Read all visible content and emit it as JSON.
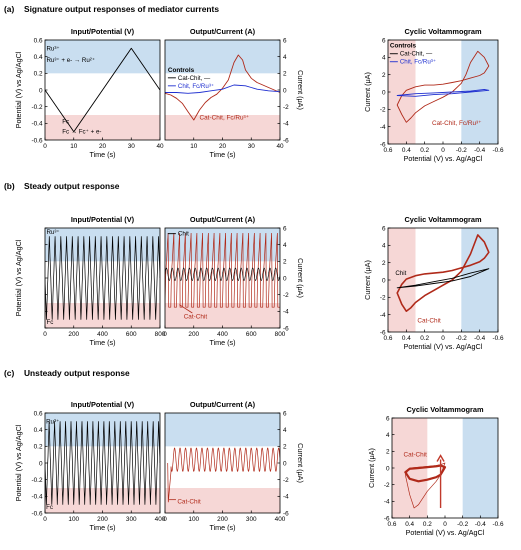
{
  "sections": [
    {
      "id": "a",
      "label": "(a)",
      "title": "Signature output responses of mediator currents"
    },
    {
      "id": "b",
      "label": "(b)",
      "title": "Steady output response"
    },
    {
      "id": "c",
      "label": "(c)",
      "title": "Unsteady output response"
    }
  ],
  "colors": {
    "blue_band": "#c9def0",
    "red_band": "#f6d7d6",
    "black": "#000000",
    "cat_red": "#b02a1a",
    "chit_blue": "#1f2fd0",
    "arrow_red": "#c0392b"
  },
  "chart_data": [
    {
      "id": "a1",
      "type": "line",
      "row": 0,
      "col": 0,
      "title": "Input/Potential (V)",
      "xlabel": "Time (s)",
      "ylabel": "Potential  (V) vs Ag/AgCl",
      "xlim": [
        0,
        40
      ],
      "ylim": [
        0.6,
        -0.6
      ],
      "xticks": [
        "0",
        "10",
        "20",
        "30",
        "40"
      ],
      "yticks": [
        "-0.6",
        "-0.4",
        "-0.2",
        "0",
        "0.2",
        "0.4",
        "0.6"
      ],
      "bands": [
        {
          "color": "blue",
          "y": [
            -0.6,
            -0.2
          ]
        },
        {
          "color": "red",
          "y": [
            0.3,
            0.6
          ]
        }
      ],
      "series": [
        {
          "color": "black",
          "x": [
            0,
            10,
            30,
            40
          ],
          "y": [
            0.0,
            0.5,
            -0.5,
            0.0
          ]
        }
      ],
      "annotations": [
        {
          "text": "Ru³⁺",
          "x": 0.5,
          "y": -0.5,
          "style": "ann"
        },
        {
          "text": "Ru³⁺ + e- → Ru²⁺",
          "x": 0.5,
          "y": -0.36,
          "style": "ann"
        },
        {
          "text": "Fc",
          "x": 6,
          "y": 0.38,
          "style": "ann"
        },
        {
          "text": "Fc → Fc⁺ + e-",
          "x": 6,
          "y": 0.5,
          "style": "ann"
        }
      ]
    },
    {
      "id": "a2",
      "type": "line",
      "row": 0,
      "col": 1,
      "title": "Output/Current (A)",
      "xlabel": "Time (s)",
      "ylabel_right": "Current (μA)",
      "xlim": [
        0,
        40
      ],
      "ylim": [
        -6,
        6
      ],
      "xticks": [
        "10",
        "20",
        "30",
        "40"
      ],
      "yticks": [
        "-6",
        "-4",
        "-2",
        "0",
        "2",
        "4",
        "6"
      ],
      "bands": [
        {
          "color": "blue",
          "y": [
            2,
            6
          ]
        },
        {
          "color": "red",
          "y": [
            -6,
            -3
          ]
        }
      ],
      "series": [
        {
          "color": "red",
          "x": [
            0,
            2,
            4,
            6,
            8,
            10,
            12,
            14,
            16,
            18,
            20,
            22,
            24,
            25.5,
            27,
            28,
            30,
            32,
            34,
            36,
            38,
            40
          ],
          "y": [
            -0.4,
            -0.6,
            -1.0,
            -1.6,
            -2.6,
            -3.6,
            -2.4,
            -1.5,
            -0.9,
            -0.5,
            0.2,
            1.2,
            3.3,
            4.2,
            3.6,
            2.4,
            1.4,
            0.9,
            0.6,
            0.3,
            0.0,
            -0.3
          ]
        },
        {
          "color": "blue",
          "x": [
            0,
            4,
            8,
            12,
            16,
            20,
            24,
            28,
            30,
            32,
            36,
            40
          ],
          "y": [
            -0.3,
            -0.3,
            -0.4,
            -0.3,
            -0.1,
            0.1,
            0.6,
            0.5,
            0.3,
            0.1,
            -0.1,
            -0.2
          ]
        }
      ],
      "legend": {
        "title": "Controls",
        "entries": [
          {
            "text": "Cat-Chit, —",
            "color": "black"
          },
          {
            "text": "Chit, Fc/Ru³⁺",
            "color": "blue"
          }
        ],
        "x": 1,
        "y": 2.9
      },
      "annotations": [
        {
          "text": "Cat-Chit, Fc/Ru³⁺",
          "x": 12,
          "y": -3.3,
          "style": "ann-red"
        }
      ]
    },
    {
      "id": "a3",
      "type": "line",
      "row": 0,
      "col": 2,
      "title": "Cyclic Voltammogram",
      "xlabel": "Potential  (V) vs. Ag/AgCl",
      "ylabel": "Current (μA)",
      "xlim": [
        0.6,
        -0.6
      ],
      "ylim": [
        -6,
        6
      ],
      "xticks": [
        "0.6",
        "0.4",
        "0.2",
        "0",
        "-0.2",
        "-0.4",
        "-0.6"
      ],
      "yticks": [
        "-6",
        "-4",
        "-2",
        "0",
        "2",
        "4",
        "6"
      ],
      "bands": [
        {
          "color": "red",
          "x": [
            0.6,
            0.3
          ]
        },
        {
          "color": "blue",
          "x": [
            -0.2,
            -0.6
          ]
        }
      ],
      "series": [
        {
          "color": "red",
          "closed": true,
          "x": [
            0.5,
            0.45,
            0.4,
            0.35,
            0.3,
            0.2,
            0.1,
            0.0,
            -0.1,
            -0.2,
            -0.25,
            -0.3,
            -0.38,
            -0.45,
            -0.5,
            -0.45,
            -0.4,
            -0.3,
            -0.2,
            -0.1,
            0.0,
            0.1,
            0.2,
            0.3,
            0.4,
            0.45
          ],
          "y": [
            -1.5,
            -2.6,
            -3.5,
            -3.0,
            -2.4,
            -1.6,
            -1.1,
            -0.6,
            0.0,
            1.0,
            2.0,
            3.4,
            4.7,
            4.0,
            3.0,
            2.2,
            1.9,
            1.6,
            1.3,
            1.1,
            0.9,
            0.8,
            0.8,
            0.6,
            0.2,
            -0.4
          ]
        },
        {
          "color": "blue",
          "closed": true,
          "x": [
            0.5,
            0.3,
            0.1,
            -0.1,
            -0.3,
            -0.45,
            -0.5,
            -0.3,
            -0.1,
            0.1,
            0.3,
            0.5
          ],
          "y": [
            -0.4,
            -0.2,
            -0.1,
            0.0,
            0.1,
            0.3,
            0.2,
            0.0,
            -0.2,
            -0.3,
            -0.5,
            -0.4
          ]
        }
      ],
      "legend": {
        "title": "Controls",
        "entries": [
          {
            "text": "Cat-Chit, —",
            "color": "black"
          },
          {
            "text": "Chit, Fc/Ru³⁺",
            "color": "blue"
          }
        ],
        "x": 0.58,
        "y": 5.8
      },
      "annotations": [
        {
          "text": "Cat-Chit, Fc/Ru³⁺",
          "x": 0.12,
          "y": -3.6,
          "style": "ann-red"
        }
      ]
    },
    {
      "id": "b1",
      "type": "line",
      "row": 1,
      "col": 0,
      "title": "Input/Potential (V)",
      "xlabel": "Time (s)",
      "ylabel": "Potential  (V) vs Ag/AgCl",
      "xlim": [
        0,
        800
      ],
      "ylim": [
        0.6,
        -0.6
      ],
      "xticks": [
        "0",
        "200",
        "400",
        "600",
        "800"
      ],
      "yticks": [],
      "bands": [
        {
          "color": "blue",
          "y": [
            -0.6,
            -0.2
          ]
        },
        {
          "color": "red",
          "y": [
            0.3,
            0.6
          ]
        }
      ],
      "wave": {
        "kind": "triangle",
        "start": 0,
        "end": 800,
        "period": 40,
        "phase": 0,
        "min": -0.5,
        "max": 0.5,
        "color": "black"
      },
      "annotations": [
        {
          "text": "Ru³⁺",
          "x": 10,
          "y": -0.55,
          "style": "ann"
        },
        {
          "text": "Fc",
          "x": 10,
          "y": 0.53,
          "style": "ann"
        }
      ]
    },
    {
      "id": "b2",
      "type": "line",
      "row": 1,
      "col": 1,
      "title": "Output/Current (A)",
      "xlabel": "Time (s)",
      "ylabel_right": "Current (μA)",
      "xlim": [
        0,
        800
      ],
      "ylim": [
        -6,
        6
      ],
      "xticks": [
        "0",
        "200",
        "400",
        "600",
        "800"
      ],
      "yticks": [
        "-6",
        "-4",
        "-2",
        "0",
        "2",
        "4",
        "6"
      ],
      "bands": [
        {
          "color": "blue",
          "y": [
            2,
            6
          ]
        },
        {
          "color": "red",
          "y": [
            -6,
            -3
          ]
        }
      ],
      "waves": [
        {
          "kind": "spike",
          "start": 0,
          "end": 800,
          "period": 40,
          "min": -3.5,
          "max": 5.5,
          "base": 0.3,
          "color": "red",
          "sw": 0.7
        },
        {
          "kind": "sine",
          "start": 0,
          "end": 800,
          "period": 40,
          "min": -0.3,
          "max": 1.2,
          "color": "black",
          "sw": 0.6
        }
      ],
      "legend": {
        "title": "",
        "entries": [
          {
            "text": "Chit",
            "color": "black"
          }
        ],
        "x": 20,
        "y": 5.8
      },
      "annotations": [
        {
          "text": "Cat-Chit",
          "x": 130,
          "y": -4.6,
          "style": "ann-red"
        }
      ],
      "legend_line": {
        "x": [
          190,
          100
        ],
        "y": [
          -4.2,
          -3.2
        ],
        "color": "red"
      }
    },
    {
      "id": "b3",
      "type": "line",
      "row": 1,
      "col": 2,
      "title": "Cyclic Voltammogram",
      "xlabel": "Potential  (V) vs. Ag/AgCl",
      "ylabel": "Current (μA)",
      "xlim": [
        0.6,
        -0.6
      ],
      "ylim": [
        -6,
        6
      ],
      "xticks": [
        "0.6",
        "0.4",
        "0.2",
        "0",
        "-0.2",
        "-0.4",
        "-0.6"
      ],
      "yticks": [
        "-6",
        "-4",
        "-2",
        "0",
        "2",
        "4",
        "6"
      ],
      "bands": [
        {
          "color": "red",
          "x": [
            0.6,
            0.3
          ]
        },
        {
          "color": "blue",
          "x": [
            -0.2,
            -0.6
          ]
        }
      ],
      "series": [
        {
          "color": "red",
          "closed": true,
          "x": [
            0.5,
            0.45,
            0.4,
            0.35,
            0.3,
            0.2,
            0.1,
            0.0,
            -0.1,
            -0.2,
            -0.3,
            -0.38,
            -0.45,
            -0.5,
            -0.45,
            -0.4,
            -0.3,
            -0.2,
            -0.1,
            0.0,
            0.1,
            0.2,
            0.3,
            0.4,
            0.45
          ],
          "y": [
            -1.5,
            -2.8,
            -3.6,
            -3.2,
            -2.6,
            -1.8,
            -1.2,
            -0.6,
            0.0,
            1.0,
            3.0,
            5.2,
            4.4,
            3.2,
            2.5,
            2.1,
            1.7,
            1.4,
            1.1,
            0.9,
            0.8,
            0.7,
            0.5,
            0.1,
            -0.5
          ],
          "sw": 1.6
        },
        {
          "color": "black",
          "closed": true,
          "x": [
            0.5,
            0.3,
            0.1,
            -0.1,
            -0.3,
            -0.5,
            -0.3,
            -0.1,
            0.1,
            0.3,
            0.5
          ],
          "y": [
            -0.9,
            -0.6,
            -0.2,
            0.2,
            0.8,
            1.3,
            0.4,
            -0.1,
            -0.4,
            -0.7,
            -0.9
          ]
        }
      ],
      "annotations": [
        {
          "text": "Chit",
          "x": 0.52,
          "y": 0.8,
          "style": "ann"
        },
        {
          "text": "Cat-Chit",
          "x": 0.28,
          "y": -4.7,
          "style": "ann-red"
        }
      ]
    },
    {
      "id": "c1",
      "type": "line",
      "row": 2,
      "col": 0,
      "title": "Input/Potential (V)",
      "xlabel": "Time (s)",
      "ylabel": "Potential  (V) vs Ag/AgCl",
      "xlim": [
        0,
        420
      ],
      "ylim": [
        0.6,
        -0.6
      ],
      "xticks": [
        "0",
        "100",
        "200",
        "300",
        "400"
      ],
      "yticks": [
        "-0.6",
        "-0.4",
        "-0.2",
        "0",
        "0.2",
        "0.4",
        "0.6"
      ],
      "bands": [
        {
          "color": "blue",
          "y": [
            -0.6,
            -0.2
          ]
        },
        {
          "color": "red",
          "y": [
            0.3,
            0.6
          ]
        }
      ],
      "wave": {
        "kind": "triangle",
        "start": 0,
        "end": 420,
        "period": 20,
        "phase": 0,
        "min": -0.5,
        "max": 0.5,
        "color": "black"
      },
      "annotations": [
        {
          "text": "Ru³⁺",
          "x": 4,
          "y": -0.5,
          "style": "ann"
        },
        {
          "text": "Fc",
          "x": 4,
          "y": 0.53,
          "style": "ann"
        }
      ]
    },
    {
      "id": "c2",
      "type": "line",
      "row": 2,
      "col": 1,
      "title": "Output/Current (A)",
      "xlabel": "Time (s)",
      "ylabel_right": "Current (μA)",
      "xlim": [
        0,
        420
      ],
      "ylim": [
        -6,
        6
      ],
      "xticks": [
        "0",
        "100",
        "200",
        "300",
        "400"
      ],
      "yticks": [
        "-6",
        "-4",
        "-2",
        "0",
        "2",
        "4",
        "6"
      ],
      "bands": [
        {
          "color": "blue",
          "y": [
            2,
            6
          ]
        },
        {
          "color": "red",
          "y": [
            -6,
            -3
          ]
        }
      ],
      "waves": [
        {
          "kind": "decay",
          "start": 10,
          "end": 420,
          "period": 20,
          "min": -1.0,
          "max": 1.8,
          "drop": -4.7,
          "color": "red",
          "sw": 0.7
        }
      ],
      "annotations": [
        {
          "text": "Cat-Chit",
          "x": 45,
          "y": -4.6,
          "style": "ann-red"
        }
      ],
      "legend_line": {
        "x": [
          40,
          15
        ],
        "y": [
          -4.4,
          -4.4
        ],
        "color": "red"
      }
    },
    {
      "id": "c3",
      "type": "line",
      "row": 2,
      "col": 2,
      "title": "Cyclic Voltammogram",
      "xlabel": "Potential  (V) vs. Ag/AgCl",
      "ylabel": "Current (μA)",
      "xlim": [
        0.6,
        -0.6
      ],
      "ylim": [
        -6,
        6
      ],
      "xticks": [
        "0.6",
        "0.4",
        "0.2",
        "0",
        "-0.2",
        "-0.4",
        "-0.6"
      ],
      "yticks": [
        "-6",
        "-4",
        "-2",
        "0",
        "2",
        "4",
        "6"
      ],
      "bands": [
        {
          "color": "red",
          "x": [
            0.6,
            0.2
          ]
        },
        {
          "color": "blue",
          "x": [
            -0.2,
            -0.6
          ]
        }
      ],
      "series": [
        {
          "color": "red",
          "closed": true,
          "sw": 2.2,
          "x": [
            0.45,
            0.4,
            0.3,
            0.2,
            0.1,
            0.05,
            0.0,
            0.05,
            0.1,
            0.2,
            0.3,
            0.4,
            0.45
          ],
          "y": [
            -0.5,
            -1.3,
            -1.6,
            -1.4,
            -1.1,
            -0.8,
            0.1,
            0.3,
            0.2,
            0.1,
            0.0,
            -0.1,
            -0.5
          ]
        },
        {
          "color": "red",
          "closed": true,
          "sw": 0.7,
          "x": [
            0.45,
            0.4,
            0.35,
            0.3,
            0.2,
            0.1,
            0.05,
            0.0,
            0.05,
            0.1,
            0.2,
            0.3,
            0.4,
            0.45
          ],
          "y": [
            -0.8,
            -3.2,
            -4.8,
            -4.4,
            -2.8,
            -1.6,
            -0.8,
            0.6,
            0.4,
            0.3,
            0.2,
            0.1,
            0.0,
            -0.8
          ]
        }
      ],
      "arrow": {
        "x": [
          0.05,
          0.05
        ],
        "y": [
          -4.8,
          1.5
        ],
        "color": "red"
      },
      "annotations": [
        {
          "text": "Cat-Chit",
          "x": 0.47,
          "y": 1.6,
          "style": "ann-red"
        }
      ]
    }
  ]
}
